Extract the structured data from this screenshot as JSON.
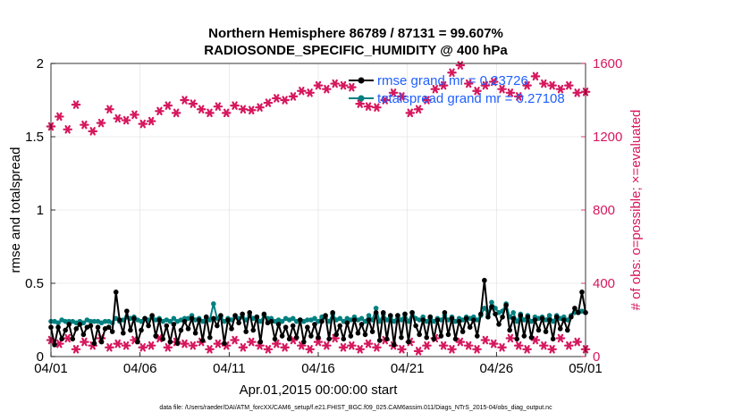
{
  "chart_data": {
    "type": "line",
    "title_line1": "Northern Hemisphere 86789 / 87131 = 99.607%",
    "title_line2": "RADIOSONDE_SPECIFIC_HUMIDITY @ 400 hPa",
    "xlabel": "Apr.01,2015 00:00:00 start",
    "ylabel_left": "rmse and totalspread",
    "ylabel_right": "# of obs: o=possible; ×=evaluated",
    "x_tick_labels": [
      "04/01",
      "04/06",
      "04/11",
      "04/16",
      "04/21",
      "04/26",
      "05/01"
    ],
    "x_tick_days": [
      0,
      5,
      10,
      15,
      20,
      25,
      30
    ],
    "xlim_days": [
      0,
      30
    ],
    "ylim_left": [
      0,
      2
    ],
    "y_left_ticks": [
      "0",
      "0.5",
      "1",
      "1.5",
      "2"
    ],
    "ylim_right": [
      0,
      1600
    ],
    "y_right_ticks": [
      "0",
      "400",
      "800",
      "1200",
      "1600"
    ],
    "legend": [
      "rmse grand mr = 0.23726",
      "totalspread grand mr = 0.27108"
    ],
    "footnote": "data file: /Users/raeder/DAI/ATM_forcXX/CAM6_setup/f.e21.FHIST_BGC.f09_025.CAM6assim.011/Diags_NTrS_2015-04/obs_diag_output.nc",
    "colors": {
      "rmse": "#000000",
      "spread": "#008080",
      "obs": "#d6175d",
      "right_axis": "#d6175d",
      "legend_text": "#1f5fff"
    },
    "series": [
      {
        "name": "rmse",
        "values": [
          0.2,
          0.08,
          0.2,
          0.12,
          0.18,
          0.22,
          0.12,
          0.19,
          0.22,
          0.15,
          0.2,
          0.21,
          0.09,
          0.2,
          0.1,
          0.19,
          0.2,
          0.17,
          0.44,
          0.25,
          0.16,
          0.31,
          0.18,
          0.26,
          0.1,
          0.18,
          0.26,
          0.21,
          0.28,
          0.14,
          0.25,
          0.12,
          0.21,
          0.1,
          0.22,
          0.09,
          0.18,
          0.24,
          0.19,
          0.26,
          0.16,
          0.25,
          0.11,
          0.27,
          0.13,
          0.26,
          0.21,
          0.28,
          0.09,
          0.25,
          0.19,
          0.28,
          0.23,
          0.29,
          0.17,
          0.3,
          0.18,
          0.27,
          0.1,
          0.29,
          0.23,
          0.24,
          0.12,
          0.22,
          0.14,
          0.2,
          0.12,
          0.21,
          0.13,
          0.25,
          0.1,
          0.2,
          0.14,
          0.22,
          0.13,
          0.24,
          0.28,
          0.12,
          0.3,
          0.15,
          0.21,
          0.12,
          0.23,
          0.14,
          0.25,
          0.16,
          0.22,
          0.15,
          0.25,
          0.17,
          0.3,
          0.11,
          0.3,
          0.12,
          0.28,
          0.08,
          0.28,
          0.13,
          0.29,
          0.1,
          0.3,
          0.21,
          0.15,
          0.25,
          0.13,
          0.27,
          0.12,
          0.25,
          0.14,
          0.3,
          0.15,
          0.26,
          0.12,
          0.24,
          0.17,
          0.26,
          0.2,
          0.25,
          0.14,
          0.29,
          0.52,
          0.27,
          0.34,
          0.29,
          0.22,
          0.27,
          0.35,
          0.18,
          0.26,
          0.12,
          0.28,
          0.14,
          0.27,
          0.13,
          0.25,
          0.18,
          0.26,
          0.17,
          0.25,
          0.12,
          0.27,
          0.19,
          0.25,
          0.18,
          0.27,
          0.33,
          0.3,
          0.44,
          0.3
        ]
      },
      {
        "name": "totalspread",
        "values": [
          0.24,
          0.24,
          0.23,
          0.25,
          0.24,
          0.24,
          0.24,
          0.23,
          0.24,
          0.23,
          0.25,
          0.24,
          0.24,
          0.24,
          0.23,
          0.24,
          0.24,
          0.23,
          0.26,
          0.24,
          0.25,
          0.27,
          0.26,
          0.27,
          0.25,
          0.24,
          0.26,
          0.25,
          0.27,
          0.25,
          0.26,
          0.24,
          0.25,
          0.24,
          0.26,
          0.24,
          0.25,
          0.26,
          0.26,
          0.28,
          0.25,
          0.26,
          0.24,
          0.27,
          0.25,
          0.36,
          0.26,
          0.27,
          0.24,
          0.26,
          0.25,
          0.27,
          0.26,
          0.27,
          0.25,
          0.28,
          0.26,
          0.27,
          0.24,
          0.28,
          0.26,
          0.26,
          0.24,
          0.25,
          0.24,
          0.26,
          0.25,
          0.26,
          0.24,
          0.25,
          0.24,
          0.25,
          0.25,
          0.26,
          0.24,
          0.27,
          0.27,
          0.24,
          0.29,
          0.25,
          0.26,
          0.24,
          0.26,
          0.25,
          0.27,
          0.25,
          0.26,
          0.24,
          0.28,
          0.25,
          0.33,
          0.24,
          0.29,
          0.25,
          0.27,
          0.24,
          0.28,
          0.25,
          0.29,
          0.24,
          0.3,
          0.26,
          0.25,
          0.27,
          0.24,
          0.27,
          0.24,
          0.26,
          0.25,
          0.28,
          0.25,
          0.27,
          0.24,
          0.26,
          0.25,
          0.27,
          0.26,
          0.27,
          0.25,
          0.28,
          0.33,
          0.29,
          0.37,
          0.33,
          0.3,
          0.31,
          0.36,
          0.27,
          0.3,
          0.24,
          0.29,
          0.25,
          0.28,
          0.24,
          0.27,
          0.26,
          0.27,
          0.25,
          0.28,
          0.24,
          0.28,
          0.26,
          0.27,
          0.25,
          0.28,
          0.3,
          0.3,
          0.31,
          0.3
        ]
      },
      {
        "name": "obs_possible",
        "values": [
          1256,
          1310,
          1240,
          1375,
          1265,
          1230,
          1275,
          1350,
          1300,
          1290,
          1320,
          1270,
          1285,
          1340,
          1370,
          1330,
          1400,
          1380,
          1350,
          1330,
          1365,
          1330,
          1370,
          1350,
          1345,
          1360,
          1385,
          1410,
          1400,
          1420,
          1450,
          1440,
          1480,
          1460,
          1490,
          1480,
          1470,
          1380,
          1365,
          1360,
          1400,
          1440,
          1420,
          1330,
          1350,
          1400,
          1460,
          1480,
          1550,
          1590,
          1490,
          1450,
          1480,
          1500,
          1460,
          1440,
          1420,
          1480,
          1530,
          1490,
          1480,
          1460,
          1480,
          1440,
          1445
        ]
      },
      {
        "name": "obs_evaluated",
        "values": [
          90,
          70,
          100,
          40,
          80,
          60,
          100,
          50,
          70,
          60,
          90,
          50,
          60,
          100,
          50,
          80,
          70,
          60,
          80,
          40,
          70,
          60,
          90,
          50,
          80,
          60,
          40,
          70,
          50,
          90,
          60,
          40,
          80,
          60,
          100,
          50,
          60,
          40,
          70,
          50,
          90,
          60,
          40,
          80,
          30,
          60,
          100,
          60,
          40,
          80,
          60,
          40,
          90,
          70,
          50,
          100,
          60,
          40,
          90,
          60,
          40,
          100,
          60,
          80,
          40
        ]
      }
    ]
  }
}
